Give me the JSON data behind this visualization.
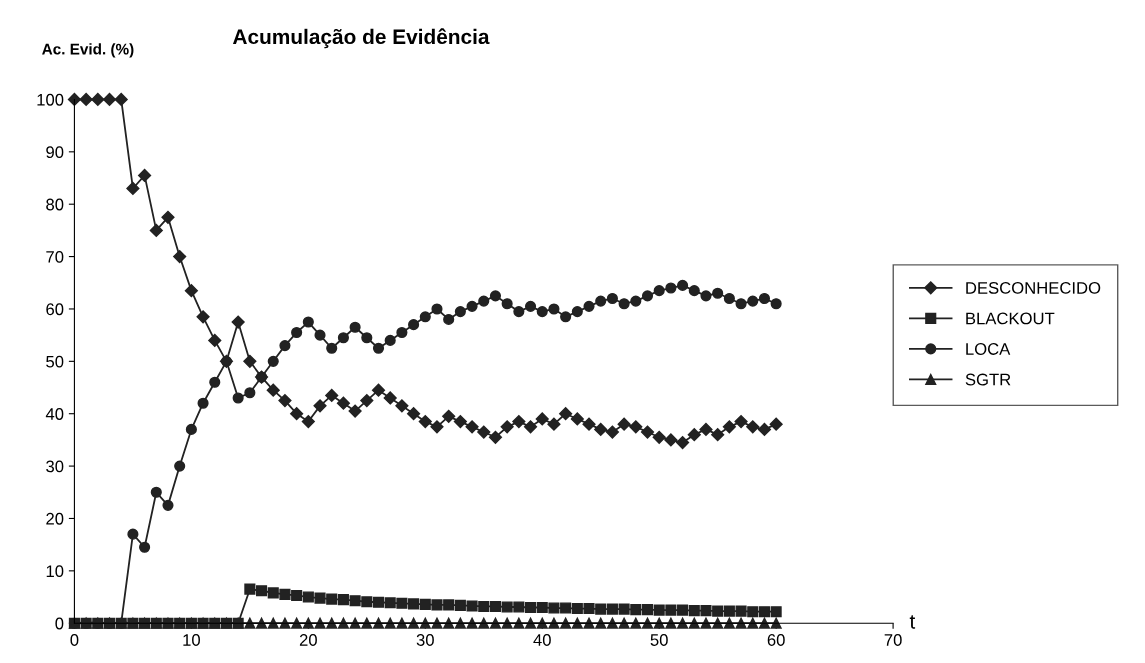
{
  "chart_data": {
    "type": "line",
    "title": "Acumulação de Evidência",
    "ylabel": "Ac. Evid. (%)",
    "xlabel": "t",
    "x": [
      0,
      1,
      2,
      3,
      4,
      5,
      6,
      7,
      8,
      9,
      10,
      11,
      12,
      13,
      14,
      15,
      16,
      17,
      18,
      19,
      20,
      21,
      22,
      23,
      24,
      25,
      26,
      27,
      28,
      29,
      30,
      31,
      32,
      33,
      34,
      35,
      36,
      37,
      38,
      39,
      40,
      41,
      42,
      43,
      44,
      45,
      46,
      47,
      48,
      49,
      50,
      51,
      52,
      53,
      54,
      55,
      56,
      57,
      58,
      59,
      60
    ],
    "xlim": [
      0,
      70
    ],
    "xticks": [
      0,
      10,
      20,
      30,
      40,
      50,
      60,
      70
    ],
    "ylim": [
      0,
      100
    ],
    "yticks": [
      0,
      10,
      20,
      30,
      40,
      50,
      60,
      70,
      80,
      90,
      100
    ],
    "grid": false,
    "legend": "right",
    "line_style": "solid",
    "series": [
      {
        "name": "DESCONHECIDO",
        "color": "#222222",
        "marker": "diamond",
        "values": [
          100,
          100,
          100,
          100,
          100,
          83,
          85.5,
          75,
          77.5,
          70,
          63.5,
          58.5,
          54,
          50,
          57.5,
          50,
          47,
          44.5,
          42.5,
          40,
          38.5,
          41.5,
          43.5,
          42,
          40.5,
          42.5,
          44.5,
          43,
          41.5,
          40,
          38.5,
          37.5,
          39.5,
          38.5,
          37.5,
          36.5,
          35.5,
          37.5,
          38.5,
          37.5,
          39,
          38,
          40,
          39,
          38,
          37,
          36.5,
          38,
          37.5,
          36.5,
          35.5,
          35,
          34.5,
          36,
          37,
          36,
          37.5,
          38.5,
          37.5,
          37,
          38
        ]
      },
      {
        "name": "BLACKOUT",
        "color": "#222222",
        "marker": "square",
        "values": [
          0,
          0,
          0,
          0,
          0,
          0,
          0,
          0,
          0,
          0,
          0,
          0,
          0,
          0,
          0,
          6.5,
          6.2,
          5.8,
          5.5,
          5.3,
          5,
          4.8,
          4.6,
          4.5,
          4.3,
          4.1,
          4,
          3.9,
          3.8,
          3.7,
          3.6,
          3.5,
          3.5,
          3.4,
          3.3,
          3.2,
          3.2,
          3.1,
          3.1,
          3,
          3,
          2.9,
          2.9,
          2.8,
          2.8,
          2.7,
          2.7,
          2.7,
          2.6,
          2.6,
          2.5,
          2.5,
          2.5,
          2.4,
          2.4,
          2.3,
          2.3,
          2.3,
          2.2,
          2.2,
          2.2
        ]
      },
      {
        "name": "LOCA",
        "color": "#222222",
        "marker": "circle",
        "values": [
          0,
          0,
          0,
          0,
          0,
          17,
          14.5,
          25,
          22.5,
          30,
          37,
          42,
          46,
          50,
          43,
          44,
          47,
          50,
          53,
          55.5,
          57.5,
          55,
          52.5,
          54.5,
          56.5,
          54.5,
          52.5,
          54,
          55.5,
          57,
          58.5,
          60,
          58,
          59.5,
          60.5,
          61.5,
          62.5,
          61,
          59.5,
          60.5,
          59.5,
          60,
          58.5,
          59.5,
          60.5,
          61.5,
          62,
          61,
          61.5,
          62.5,
          63.5,
          64,
          64.5,
          63.5,
          62.5,
          63,
          62,
          61,
          61.5,
          62,
          61
        ]
      },
      {
        "name": "SGTR",
        "color": "#222222",
        "marker": "triangle",
        "values": [
          0,
          0,
          0,
          0,
          0,
          0,
          0,
          0,
          0,
          0,
          0,
          0,
          0,
          0,
          0,
          0,
          0,
          0,
          0,
          0,
          0,
          0,
          0,
          0,
          0,
          0,
          0,
          0,
          0,
          0,
          0,
          0,
          0,
          0,
          0,
          0,
          0,
          0,
          0,
          0,
          0,
          0,
          0,
          0,
          0,
          0,
          0,
          0,
          0,
          0,
          0,
          0,
          0,
          0,
          0,
          0,
          0,
          0,
          0,
          0,
          0
        ]
      }
    ]
  }
}
